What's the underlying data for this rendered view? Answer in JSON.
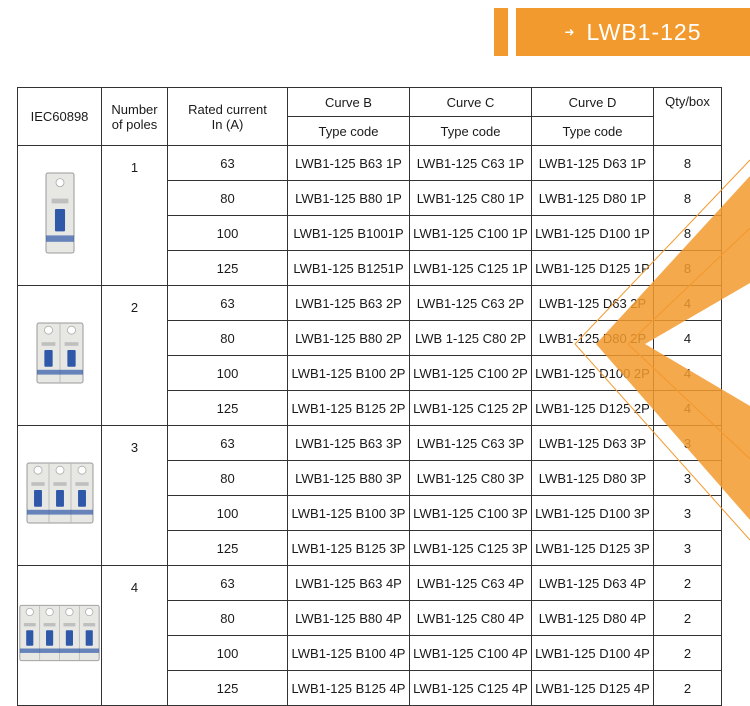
{
  "title": "LWB1-125",
  "table": {
    "headers": {
      "standard": "IEC60898",
      "poles": [
        "Number",
        "of poles"
      ],
      "rated": [
        "Rated current",
        "In (A)"
      ],
      "curve_b": "Curve B",
      "curve_c": "Curve C",
      "curve_d": "Curve D",
      "type_code": "Type code",
      "qty": "Qty/box"
    },
    "groups": [
      {
        "poles": "1",
        "rows": [
          {
            "current": "63",
            "b": "LWB1-125 B63 1P",
            "c": "LWB1-125 C63 1P",
            "d": "LWB1-125 D63 1P",
            "qty": "8"
          },
          {
            "current": "80",
            "b": "LWB1-125 B80 1P",
            "c": "LWB1-125 C80 1P",
            "d": "LWB1-125 D80 1P",
            "qty": "8"
          },
          {
            "current": "100",
            "b": "LWB1-125 B1001P",
            "c": "LWB1-125 C100 1P",
            "d": "LWB1-125 D100 1P",
            "qty": "8"
          },
          {
            "current": "125",
            "b": "LWB1-125 B1251P",
            "c": "LWB1-125 C125 1P",
            "d": "LWB1-125 D125 1P",
            "qty": "8"
          }
        ]
      },
      {
        "poles": "2",
        "rows": [
          {
            "current": "63",
            "b": "LWB1-125 B63 2P",
            "c": "LWB1-125 C63 2P",
            "d": "LWB1-125 D63 2P",
            "qty": "4"
          },
          {
            "current": "80",
            "b": "LWB1-125 B80 2P",
            "c": "LWB 1-125 C80 2P",
            "d": "LWB1-125 D80 2P",
            "qty": "4"
          },
          {
            "current": "100",
            "b": "LWB1-125 B100 2P",
            "c": "LWB1-125 C100 2P",
            "d": "LWB1-125 D100 2P",
            "qty": "4"
          },
          {
            "current": "125",
            "b": "LWB1-125 B125 2P",
            "c": "LWB1-125 C125 2P",
            "d": "LWB1-125 D125 2P",
            "qty": "4"
          }
        ]
      },
      {
        "poles": "3",
        "rows": [
          {
            "current": "63",
            "b": "LWB1-125 B63 3P",
            "c": "LWB1-125 C63 3P",
            "d": "LWB1-125 D63 3P",
            "qty": "3"
          },
          {
            "current": "80",
            "b": "LWB1-125 B80 3P",
            "c": "LWB1-125 C80 3P",
            "d": "LWB1-125 D80 3P",
            "qty": "3"
          },
          {
            "current": "100",
            "b": "LWB1-125 B100 3P",
            "c": "LWB1-125 C100 3P",
            "d": "LWB1-125 D100 3P",
            "qty": "3"
          },
          {
            "current": "125",
            "b": "LWB1-125 B125 3P",
            "c": "LWB1-125 C125 3P",
            "d": "LWB1-125 D125 3P",
            "qty": "3"
          }
        ]
      },
      {
        "poles": "4",
        "rows": [
          {
            "current": "63",
            "b": "LWB1-125 B63 4P",
            "c": "LWB1-125 C63 4P",
            "d": "LWB1-125 D63 4P",
            "qty": "2"
          },
          {
            "current": "80",
            "b": "LWB1-125 B80 4P",
            "c": "LWB1-125 C80 4P",
            "d": "LWB1-125 D80 4P",
            "qty": "2"
          },
          {
            "current": "100",
            "b": "LWB1-125 B100 4P",
            "c": "LWB1-125 C100 4P",
            "d": "LWB1-125 D100 4P",
            "qty": "2"
          },
          {
            "current": "125",
            "b": "LWB1-125 B125 4P",
            "c": "LWB1-125 C125 4P",
            "d": "LWB1-125 D125 4P",
            "qty": "2"
          }
        ]
      }
    ]
  },
  "colors": {
    "accent": "#f39a2e",
    "breaker_body": "#e7e7e4",
    "breaker_toggle": "#2f58a8"
  },
  "icons": {
    "banner": "arrow-right-icon",
    "breaker": "circuit-breaker-icon"
  }
}
